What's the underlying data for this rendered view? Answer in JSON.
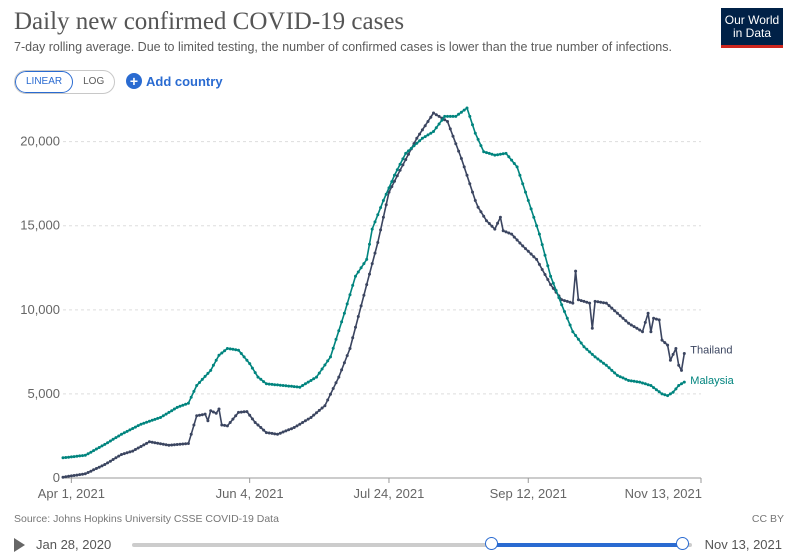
{
  "header": {
    "title": "Daily new confirmed COVID-19 cases",
    "subtitle": "7-day rolling average. Due to limited testing, the number of confirmed cases is lower than the true number of infections.",
    "logo_line1": "Our World",
    "logo_line2": "in Data"
  },
  "controls": {
    "linear_label": "LINEAR",
    "log_label": "LOG",
    "add_country_label": "Add country"
  },
  "footer": {
    "source": "Source: Johns Hopkins University CSSE COVID-19 Data",
    "license": "CC BY"
  },
  "timeline": {
    "start_label": "Jan 28, 2020",
    "end_label": "Nov 13, 2021"
  },
  "colors": {
    "thailand": "#3b4560",
    "malaysia": "#00847e",
    "grid": "#dddddd",
    "axis_text": "#666666"
  },
  "chart_data": {
    "type": "line",
    "title": "Daily new confirmed COVID-19 cases",
    "xlabel": "",
    "ylabel": "",
    "y_ticks": [
      0,
      5000,
      10000,
      15000,
      20000
    ],
    "y_tick_labels": [
      "0",
      "5,000",
      "10,000",
      "15,000",
      "20,000"
    ],
    "ylim": [
      0,
      22000
    ],
    "x_ticks": [
      {
        "day": 0,
        "label": "Apr 1, 2021"
      },
      {
        "day": 64,
        "label": "Jun 4, 2021"
      },
      {
        "day": 114,
        "label": "Jul 24, 2021"
      },
      {
        "day": 164,
        "label": "Sep 12, 2021"
      },
      {
        "day": 226,
        "label": "Nov 13, 2021"
      }
    ],
    "x_range_days": [
      -3,
      226
    ],
    "x_note": "days relative to Apr 1, 2021",
    "series": [
      {
        "name": "Thailand",
        "points": [
          [
            -3,
            50
          ],
          [
            5,
            250
          ],
          [
            12,
            800
          ],
          [
            18,
            1400
          ],
          [
            22,
            1600
          ],
          [
            28,
            2150
          ],
          [
            35,
            1950
          ],
          [
            42,
            2050
          ],
          [
            43,
            2600
          ],
          [
            45,
            3700
          ],
          [
            48,
            3800
          ],
          [
            49,
            3400
          ],
          [
            50,
            4000
          ],
          [
            52,
            3850
          ],
          [
            53,
            4100
          ],
          [
            54,
            3150
          ],
          [
            56,
            3100
          ],
          [
            57,
            3300
          ],
          [
            60,
            3900
          ],
          [
            63,
            3950
          ],
          [
            66,
            3300
          ],
          [
            70,
            2700
          ],
          [
            74,
            2600
          ],
          [
            80,
            3000
          ],
          [
            86,
            3600
          ],
          [
            91,
            4300
          ],
          [
            96,
            6000
          ],
          [
            100,
            7700
          ],
          [
            106,
            11500
          ],
          [
            110,
            14000
          ],
          [
            114,
            17000
          ],
          [
            118,
            18300
          ],
          [
            124,
            20200
          ],
          [
            130,
            21700
          ],
          [
            135,
            21200
          ],
          [
            140,
            19000
          ],
          [
            145,
            16500
          ],
          [
            146,
            16100
          ],
          [
            149,
            15300
          ],
          [
            152,
            14800
          ],
          [
            154,
            15500
          ],
          [
            155,
            14700
          ],
          [
            158,
            14500
          ],
          [
            162,
            13800
          ],
          [
            167,
            13000
          ],
          [
            172,
            11500
          ],
          [
            176,
            10600
          ],
          [
            180,
            10400
          ],
          [
            181,
            12300
          ],
          [
            182,
            10600
          ],
          [
            186,
            10400
          ],
          [
            187,
            8900
          ],
          [
            188,
            10500
          ],
          [
            192,
            10400
          ],
          [
            196,
            9800
          ],
          [
            200,
            9200
          ],
          [
            205,
            8700
          ],
          [
            207,
            9800
          ],
          [
            208,
            8700
          ],
          [
            209,
            9500
          ],
          [
            211,
            9400
          ],
          [
            212,
            8200
          ],
          [
            214,
            7900
          ],
          [
            215,
            7000
          ],
          [
            217,
            7700
          ],
          [
            218,
            6700
          ],
          [
            219,
            6400
          ],
          [
            220,
            7400
          ]
        ]
      },
      {
        "name": "Malaysia",
        "points": [
          [
            -3,
            1200
          ],
          [
            5,
            1350
          ],
          [
            12,
            2000
          ],
          [
            18,
            2600
          ],
          [
            25,
            3200
          ],
          [
            32,
            3600
          ],
          [
            38,
            4200
          ],
          [
            42,
            4450
          ],
          [
            45,
            5500
          ],
          [
            50,
            6400
          ],
          [
            53,
            7300
          ],
          [
            56,
            7700
          ],
          [
            60,
            7600
          ],
          [
            64,
            6800
          ],
          [
            67,
            6000
          ],
          [
            70,
            5600
          ],
          [
            76,
            5500
          ],
          [
            82,
            5400
          ],
          [
            88,
            6000
          ],
          [
            93,
            7200
          ],
          [
            98,
            9800
          ],
          [
            102,
            12000
          ],
          [
            106,
            13000
          ],
          [
            108,
            14800
          ],
          [
            112,
            16500
          ],
          [
            116,
            18000
          ],
          [
            120,
            19300
          ],
          [
            126,
            20200
          ],
          [
            130,
            20600
          ],
          [
            134,
            21500
          ],
          [
            138,
            21500
          ],
          [
            142,
            22000
          ],
          [
            145,
            20500
          ],
          [
            148,
            19400
          ],
          [
            152,
            19200
          ],
          [
            156,
            19300
          ],
          [
            160,
            18500
          ],
          [
            164,
            16500
          ],
          [
            168,
            14500
          ],
          [
            172,
            12000
          ],
          [
            176,
            10300
          ],
          [
            180,
            8700
          ],
          [
            184,
            7800
          ],
          [
            188,
            7200
          ],
          [
            192,
            6700
          ],
          [
            196,
            6100
          ],
          [
            200,
            5800
          ],
          [
            204,
            5700
          ],
          [
            208,
            5500
          ],
          [
            212,
            5000
          ],
          [
            214,
            4900
          ],
          [
            216,
            5100
          ],
          [
            218,
            5500
          ],
          [
            220,
            5700
          ]
        ]
      }
    ]
  }
}
